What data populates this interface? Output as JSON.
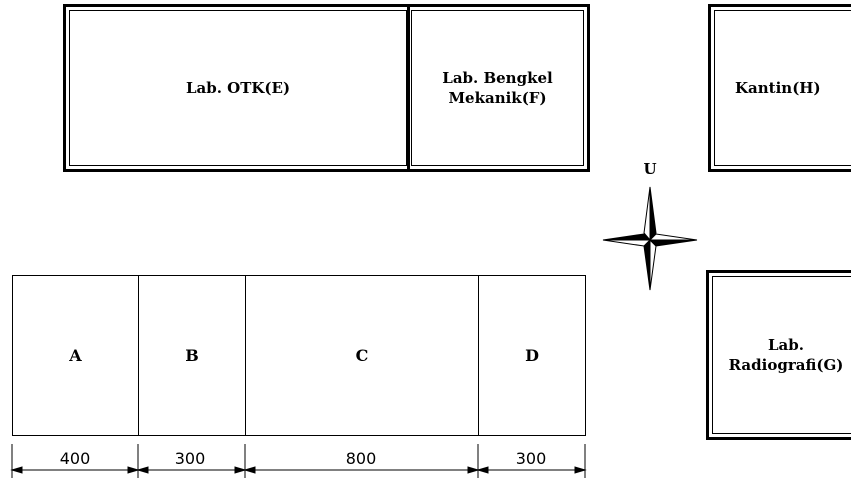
{
  "buildings": {
    "otk": "Lab. OTK(E)",
    "bengkel_line1": "Lab. Bengkel",
    "bengkel_line2": "Mekanik(F)",
    "kantin": "Kantin(H)",
    "radiografi_line1": "Lab.",
    "radiografi_line2": "Radiografi(G)"
  },
  "compass": {
    "north_label": "U"
  },
  "rooms": [
    {
      "label": "A",
      "dimension": "400"
    },
    {
      "label": "B",
      "dimension": "300"
    },
    {
      "label": "C",
      "dimension": "800"
    },
    {
      "label": "D",
      "dimension": "300"
    }
  ]
}
